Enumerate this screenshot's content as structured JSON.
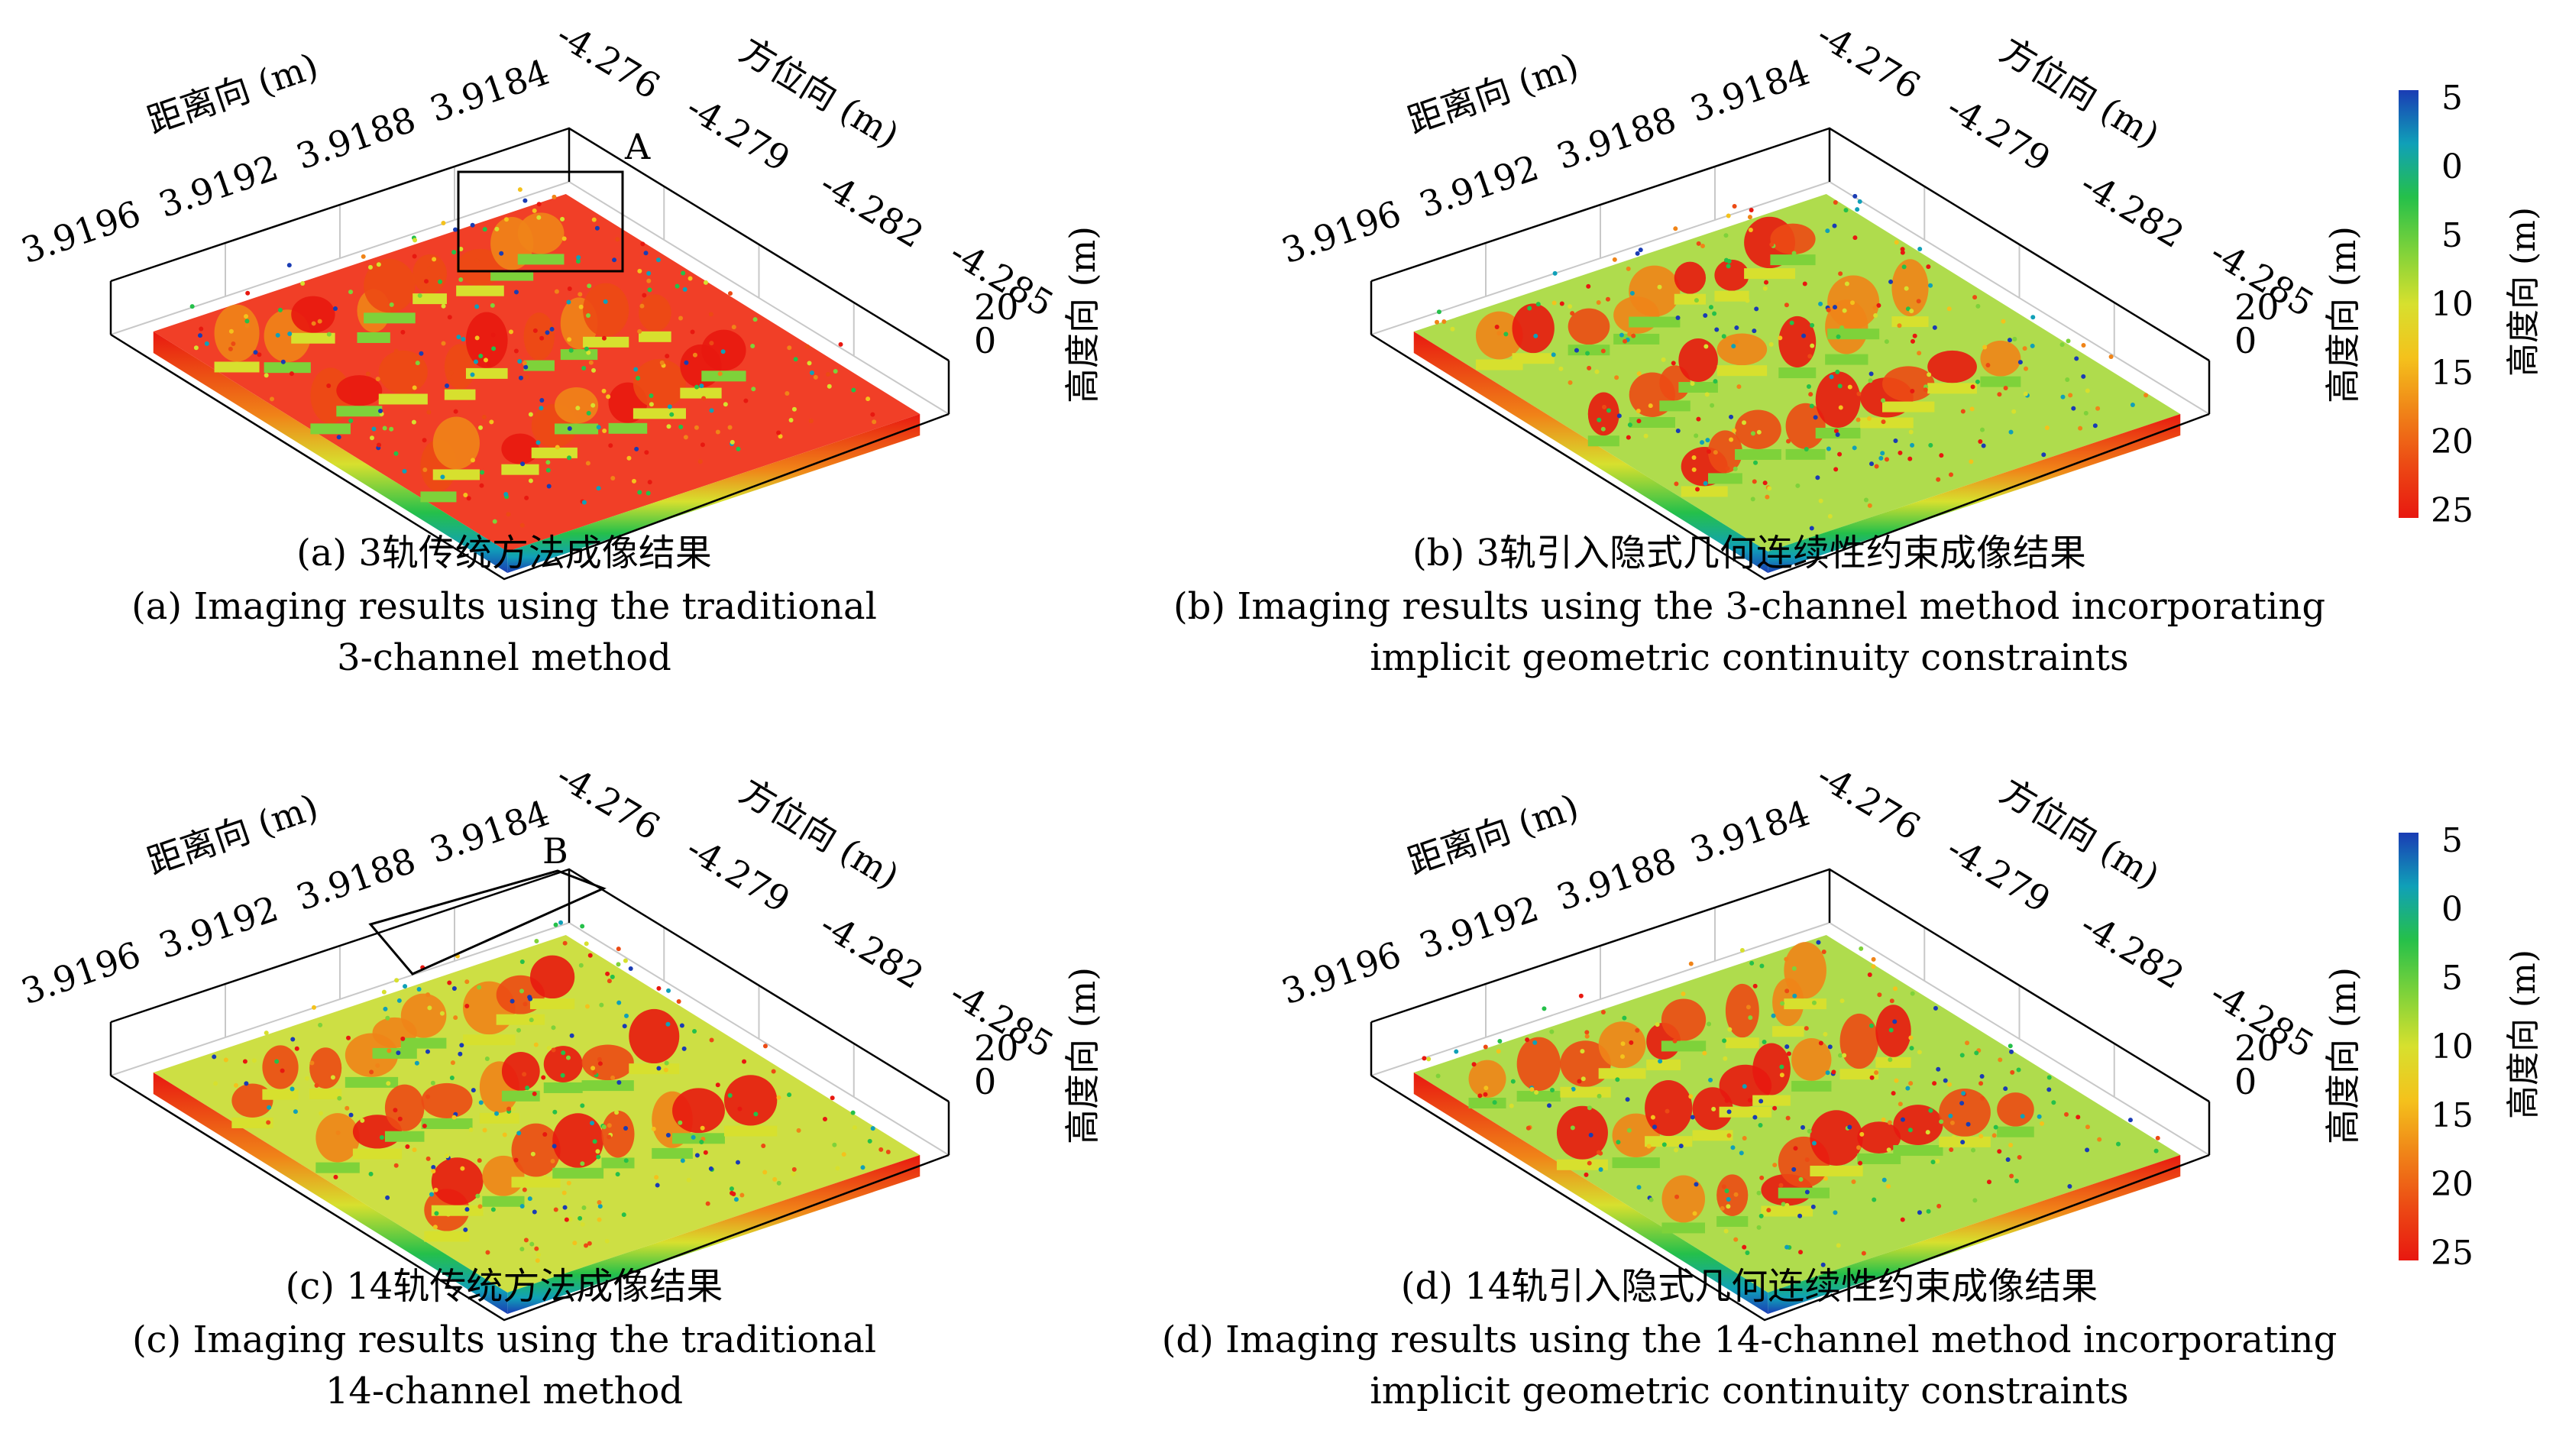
{
  "colors": {
    "colormap": [
      "#1a3cb4",
      "#10a0b8",
      "#25c04a",
      "#7ed23a",
      "#d7e02e",
      "#f4c21c",
      "#f08418",
      "#ec4a14",
      "#e81810"
    ],
    "box": "#000000",
    "grid": "#c8c8c8"
  },
  "chart_data": [
    {
      "type": "scatter3d",
      "xlabel": "距离向 (m)",
      "ylabel": "方位向 (m)",
      "zlabel": "高度向 (m)",
      "x_ticks": [
        "3.9196",
        "3.9192",
        "3.9188",
        "3.9184"
      ],
      "y_ticks": [
        "-4.276",
        "-4.279",
        "-4.282",
        "-4.285"
      ],
      "z_ticks": [
        "20",
        "0"
      ],
      "annotation": "A",
      "caption_cn": "(a) 3轨传统方法成像结果",
      "caption_en": [
        "(a) Imaging results using the traditional",
        "3-channel method"
      ]
    },
    {
      "type": "scatter3d",
      "xlabel": "距离向 (m)",
      "ylabel": "方位向 (m)",
      "zlabel": "高度向 (m)",
      "x_ticks": [
        "3.9196",
        "3.9192",
        "3.9188",
        "3.9184"
      ],
      "y_ticks": [
        "-4.276",
        "-4.279",
        "-4.282",
        "-4.285"
      ],
      "z_ticks": [
        "20",
        "0"
      ],
      "annotation": "",
      "caption_cn": "(b) 3轨引入隐式几何连续性约束成像结果",
      "caption_en": [
        "(b) Imaging results using the 3-channel method incorporating",
        "implicit geometric continuity constraints"
      ]
    },
    {
      "type": "scatter3d",
      "xlabel": "距离向 (m)",
      "ylabel": "方位向 (m)",
      "zlabel": "高度向 (m)",
      "x_ticks": [
        "3.9196",
        "3.9192",
        "3.9188",
        "3.9184"
      ],
      "y_ticks": [
        "-4.276",
        "-4.279",
        "-4.282",
        "-4.285"
      ],
      "z_ticks": [
        "20",
        "0"
      ],
      "annotation": "B",
      "caption_cn": "(c) 14轨传统方法成像结果",
      "caption_en": [
        "(c) Imaging results using the traditional",
        "14-channel method"
      ]
    },
    {
      "type": "scatter3d",
      "xlabel": "距离向 (m)",
      "ylabel": "方位向 (m)",
      "zlabel": "高度向 (m)",
      "x_ticks": [
        "3.9196",
        "3.9192",
        "3.9188",
        "3.9184"
      ],
      "y_ticks": [
        "-4.276",
        "-4.279",
        "-4.282",
        "-4.285"
      ],
      "z_ticks": [
        "20",
        "0"
      ],
      "annotation": "",
      "caption_cn": "(d) 14轨引入隐式几何连续性约束成像结果",
      "caption_en": [
        "(d) Imaging results using the 14-channel method incorporating",
        "implicit geometric continuity constraints"
      ]
    }
  ],
  "colorbars": [
    {
      "label": "高度向 (m)",
      "ticks": [
        "5",
        "0",
        "5",
        "10",
        "15",
        "20",
        "25"
      ]
    },
    {
      "label": "高度向 (m)",
      "ticks": [
        "5",
        "0",
        "5",
        "10",
        "15",
        "20",
        "25"
      ]
    }
  ]
}
